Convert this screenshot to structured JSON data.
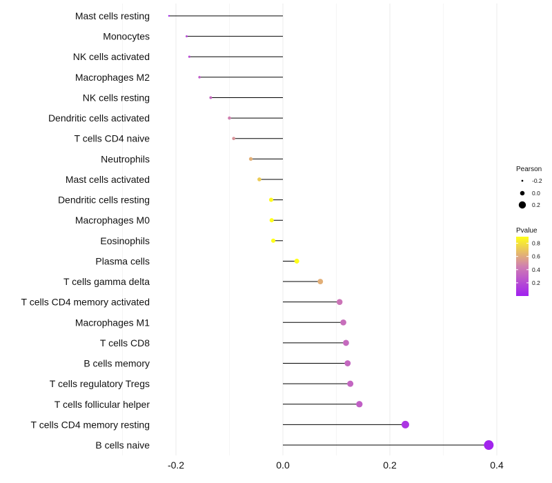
{
  "chart_data": {
    "type": "lollipop",
    "title": "",
    "xlabel": "",
    "ylabel": "",
    "xlim": [
      -0.23,
      0.4
    ],
    "x_ticks": [
      {
        "value": -0.2,
        "label": "-0.2"
      },
      {
        "value": 0.0,
        "label": "0.0"
      },
      {
        "value": 0.2,
        "label": "0.2"
      },
      {
        "value": 0.4,
        "label": "0.4"
      }
    ],
    "grid": true,
    "baseline": 0,
    "categories": [
      "Mast cells resting",
      "Monocytes",
      "NK cells activated",
      "Macrophages M2",
      "NK cells resting",
      "Dendritic cells activated",
      "T cells CD4 naive",
      "Neutrophils",
      "Mast cells activated",
      "Dendritic cells resting",
      "Macrophages M0",
      "Eosinophils",
      "Plasma cells",
      "T cells gamma delta",
      "T cells CD4 memory activated",
      "Macrophages M1",
      "T cells CD8",
      "B cells memory",
      "T cells regulatory  Tregs ",
      "T cells follicular helper",
      "T cells CD4 memory resting",
      "B cells naive"
    ],
    "pearson": [
      -0.213,
      -0.18,
      -0.175,
      -0.156,
      -0.135,
      -0.1,
      -0.092,
      -0.06,
      -0.044,
      -0.022,
      -0.021,
      -0.018,
      0.026,
      0.07,
      0.106,
      0.113,
      0.118,
      0.121,
      0.126,
      0.143,
      0.229,
      0.385
    ],
    "pvalue": [
      0.05,
      0.2,
      0.22,
      0.28,
      0.35,
      0.45,
      0.52,
      0.62,
      0.72,
      0.88,
      0.9,
      0.9,
      0.9,
      0.62,
      0.4,
      0.37,
      0.35,
      0.34,
      0.33,
      0.3,
      0.1,
      0.02
    ],
    "legend_size": {
      "title": "Pearson",
      "position": "right",
      "items": [
        {
          "value": -0.2,
          "label": "-0.2"
        },
        {
          "value": 0.0,
          "label": "0.0"
        },
        {
          "value": 0.2,
          "label": "0.2"
        }
      ]
    },
    "legend_color": {
      "title": "Pvalue",
      "position": "right",
      "range": [
        0.0,
        0.9
      ],
      "ticks": [
        {
          "value": 0.8,
          "label": "0.8"
        },
        {
          "value": 0.6,
          "label": "0.6"
        },
        {
          "value": 0.4,
          "label": "0.4"
        },
        {
          "value": 0.2,
          "label": "0.2"
        }
      ],
      "low_color": "#a020f0",
      "mid_color": "#d07fb0",
      "high_color": "#ffff1a"
    }
  }
}
